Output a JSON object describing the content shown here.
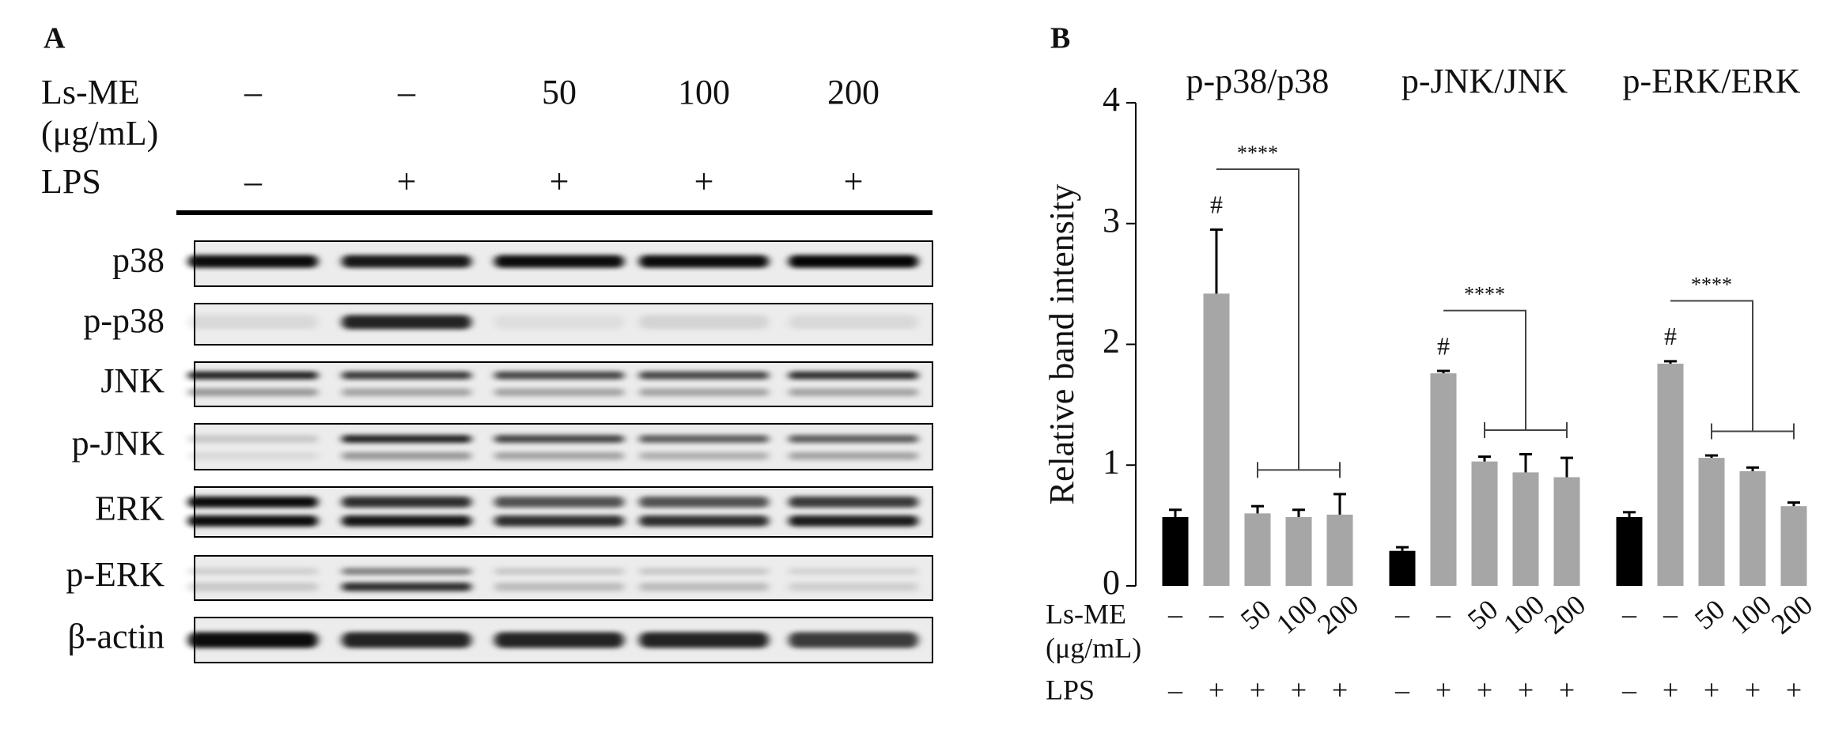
{
  "panel_a": {
    "label": "A",
    "ls_me_label": "Ls-ME",
    "unit_label": "(μg/mL)",
    "ls_me_values": [
      "–",
      "–",
      "50",
      "100",
      "200"
    ],
    "lps_label": "LPS",
    "lps_values": [
      "–",
      "+",
      "+",
      "+",
      "+"
    ],
    "blots": [
      "p38",
      "p-p38",
      "JNK",
      "p-JNK",
      "ERK",
      "p-ERK",
      "β-actin"
    ]
  },
  "chart_data": {
    "type": "bar",
    "panel_label": "B",
    "ylabel": "Relative band intensity",
    "ylim": [
      0,
      4
    ],
    "yticks": [
      0,
      1,
      2,
      3,
      4
    ],
    "bar_colors": [
      "#000000",
      "#a6a6a6",
      "#a6a6a6",
      "#a6a6a6",
      "#a6a6a6"
    ],
    "ls_me_label": "Ls-ME",
    "unit_label": "(μg/mL)",
    "lps_label": "LPS",
    "ls_me_values": [
      "–",
      "–",
      "50",
      "100",
      "200"
    ],
    "lps_values": [
      "–",
      "+",
      "+",
      "+",
      "+"
    ],
    "groups": [
      {
        "name": "p-p38/p38",
        "values": [
          0.57,
          2.42,
          0.6,
          0.57,
          0.59
        ],
        "errors": [
          0.06,
          0.53,
          0.06,
          0.06,
          0.17
        ],
        "marker": "#",
        "significance": "****"
      },
      {
        "name": "p-JNK/JNK",
        "values": [
          0.29,
          1.76,
          1.03,
          0.94,
          0.9
        ],
        "errors": [
          0.03,
          0.02,
          0.04,
          0.15,
          0.16
        ],
        "marker": "#",
        "significance": "****"
      },
      {
        "name": "p-ERK/ERK",
        "values": [
          0.57,
          1.84,
          1.06,
          0.95,
          0.66
        ],
        "errors": [
          0.04,
          0.02,
          0.02,
          0.03,
          0.03
        ],
        "marker": "#",
        "significance": "****"
      }
    ]
  }
}
